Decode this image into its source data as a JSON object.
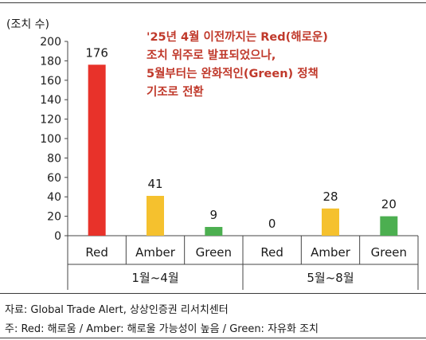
{
  "chart_data": {
    "type": "bar",
    "unit_label": "(조치 수)",
    "ylim": [
      0,
      200
    ],
    "yticks": [
      0,
      20,
      40,
      60,
      80,
      100,
      120,
      140,
      160,
      180,
      200
    ],
    "groups": [
      {
        "label": "1월~4월",
        "bars": [
          {
            "category": "Red",
            "value": 176,
            "color": "#e8322a"
          },
          {
            "category": "Amber",
            "value": 41,
            "color": "#f5c12e"
          },
          {
            "category": "Green",
            "value": 9,
            "color": "#4caf50"
          }
        ]
      },
      {
        "label": "5월~8월",
        "bars": [
          {
            "category": "Red",
            "value": 0,
            "color": "#e8322a"
          },
          {
            "category": "Amber",
            "value": 28,
            "color": "#f5c12e"
          },
          {
            "category": "Green",
            "value": 20,
            "color": "#4caf50"
          }
        ]
      }
    ],
    "annotation": [
      "'25년 4월 이전까지는 Red(해로운)",
      "조치 위주로 발표되었으나,",
      "5월부터는 완화적인(Green) 정책",
      "기조로 전환"
    ],
    "annotation_color": "#c0392b"
  },
  "footer": {
    "source": "자료: Global Trade Alert, 상상인증권 리서치센터",
    "note": "주: Red: 해로움 / Amber: 해로울 가능성이 높음 / Green: 자유화 조치"
  }
}
